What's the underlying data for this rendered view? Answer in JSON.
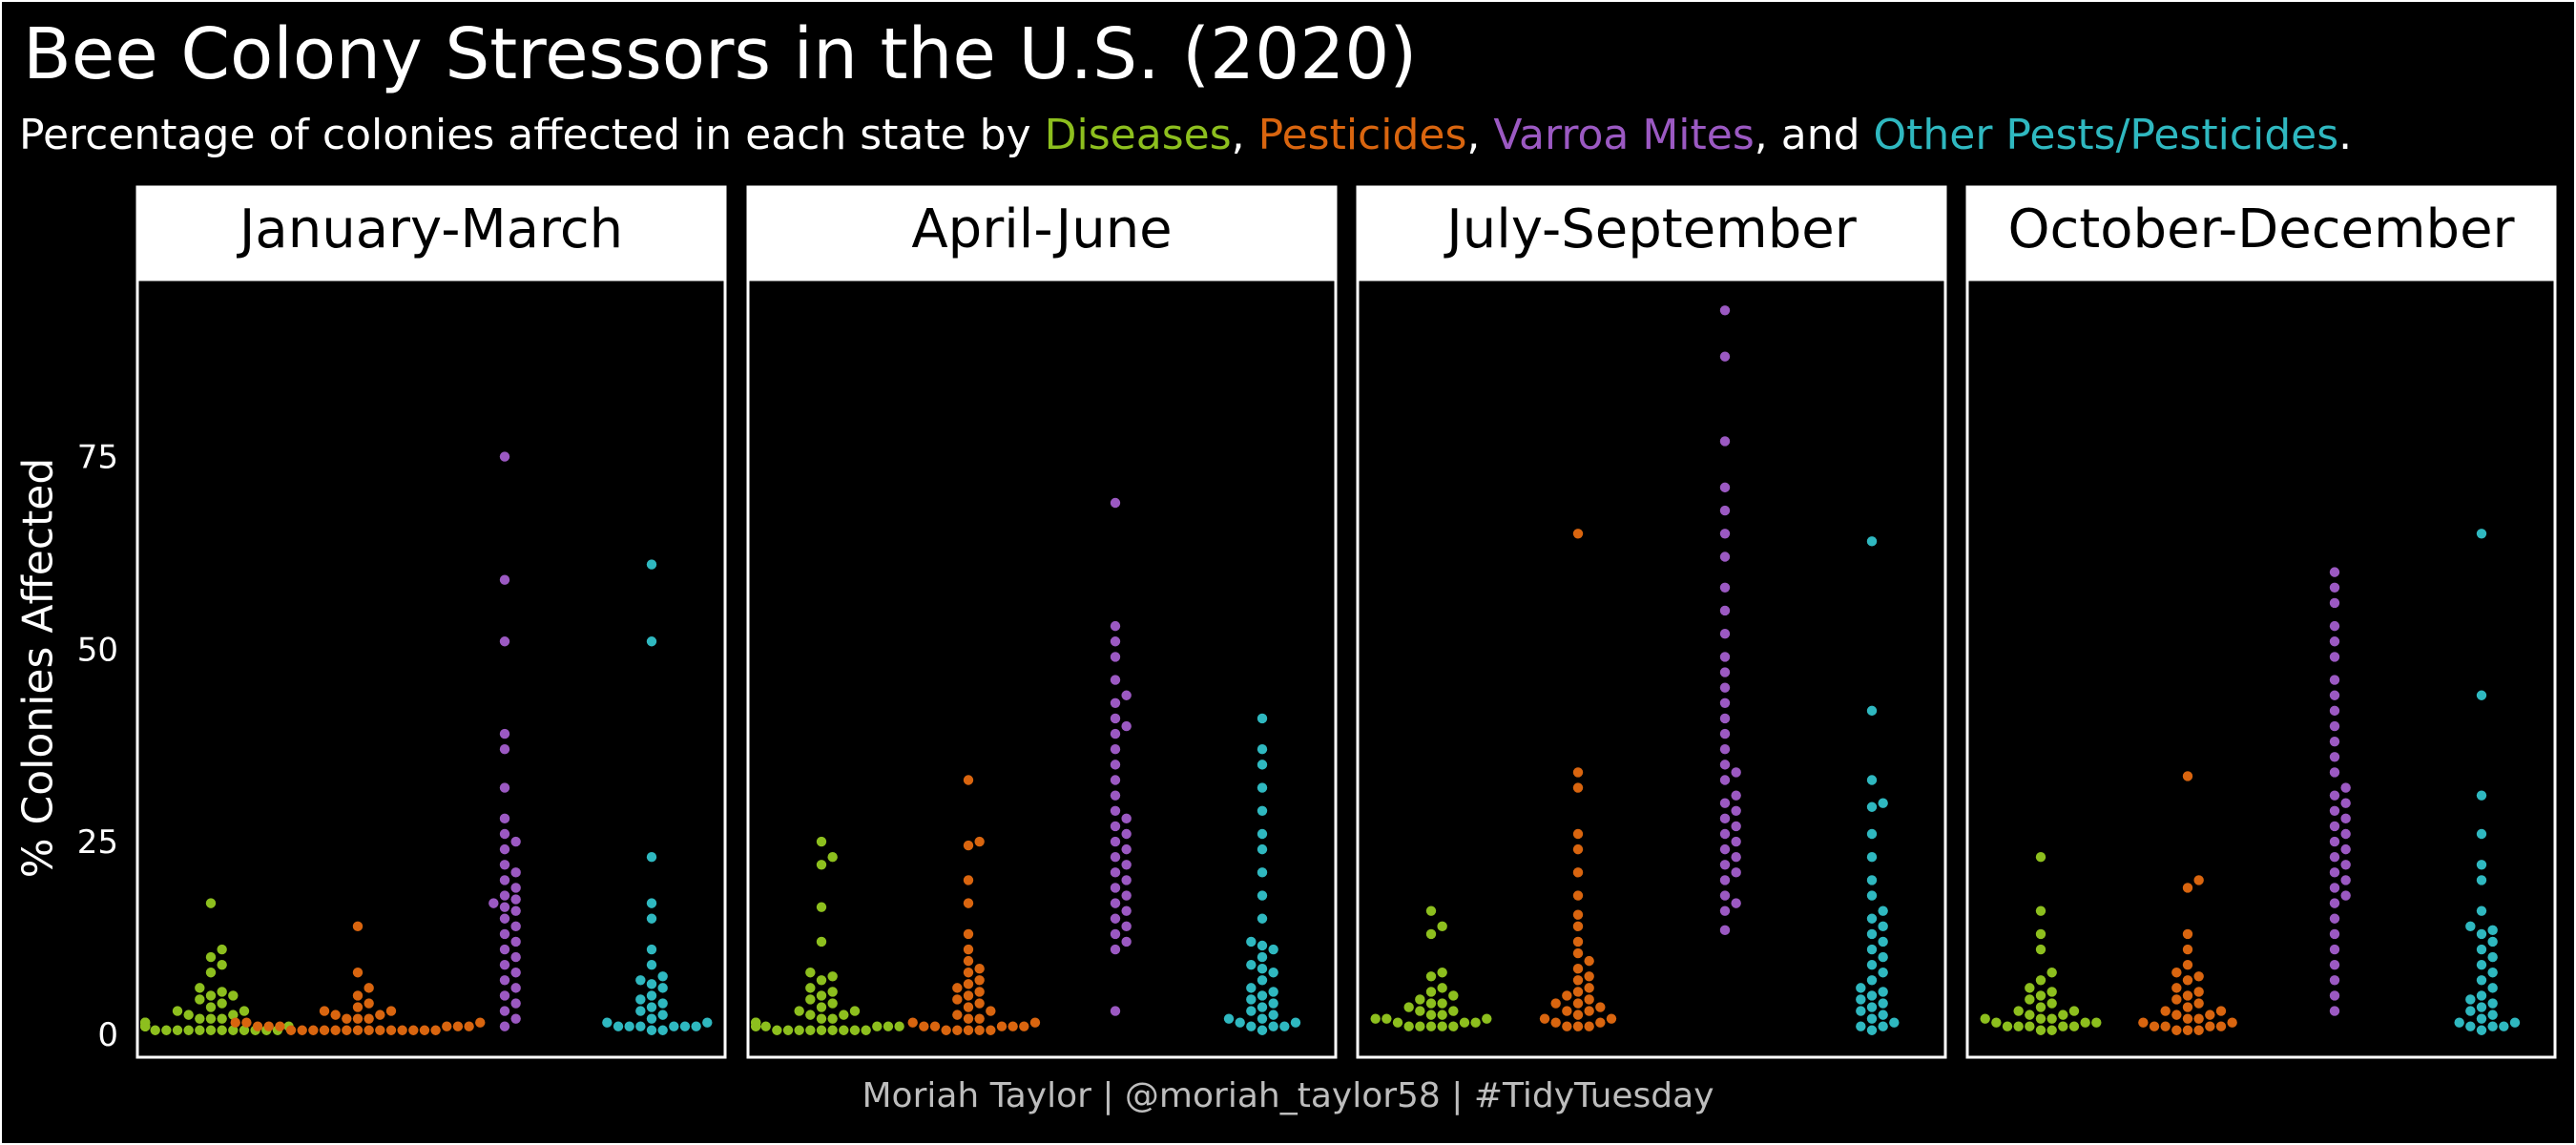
{
  "title": "Bee Colony Stressors in the U.S. (2020)",
  "subtitle": {
    "prefix": "Percentage of colonies affected in each state by ",
    "sep1": ", ",
    "sep2": ", ",
    "sep3": ", and ",
    "end": "."
  },
  "caption": "Moriah Taylor | @moriah_taylor58 | #TidyTuesday",
  "colors": {
    "background": "#000000",
    "Diseases": "#8dbf1e",
    "Pesticides": "#d9650f",
    "Varroa Mites": "#9b59c2",
    "Other Pests/Pesticides": "#2fb8c0"
  },
  "chart_data": {
    "type": "scatter",
    "subtype": "beeswarm",
    "ylabel": "% Colonies Affected",
    "ylim": [
      -3,
      98
    ],
    "yticks": [
      0,
      25,
      50,
      75
    ],
    "grid": false,
    "categories": [
      "Diseases",
      "Pesticides",
      "Varroa Mites",
      "Other Pests/Pesticides"
    ],
    "panels": [
      {
        "label": "January-March",
        "series": [
          {
            "name": "Diseases",
            "values": [
              17,
              11,
              10,
              9,
              8,
              6,
              5.5,
              5,
              5,
              4.5,
              4,
              3.5,
              3,
              3,
              2.5,
              2.5,
              2,
              2,
              2,
              1.5,
              1.5,
              1.5,
              1.5,
              1,
              1,
              1,
              1,
              1,
              1,
              1,
              1,
              1,
              0.5,
              0.5,
              0.5,
              0.5,
              0.5,
              0.5,
              0.5,
              0.5,
              0.5,
              0.5,
              0.5,
              0.5
            ]
          },
          {
            "name": "Pesticides",
            "values": [
              14,
              8,
              6,
              5,
              4,
              3.5,
              3,
              3,
              2.5,
              2.5,
              2,
              2,
              2,
              1.5,
              1.5,
              1.5,
              1,
              1,
              1,
              1,
              1,
              1,
              0.5,
              0.5,
              0.5,
              0.5,
              0.5,
              0.5,
              0.5,
              0.5,
              0.5,
              0.5,
              0.5,
              0.5,
              0.5,
              0.5
            ]
          },
          {
            "name": "Varroa Mites",
            "values": [
              75,
              59,
              51,
              39,
              37,
              32,
              28,
              26,
              25,
              24,
              22,
              21,
              20,
              19,
              18,
              17.5,
              17,
              16.5,
              16,
              15,
              14,
              13,
              12,
              11,
              10,
              9,
              8,
              7,
              6,
              5,
              4,
              3,
              2,
              1
            ]
          },
          {
            "name": "Other Pests/Pesticides",
            "values": [
              61,
              51,
              23,
              17,
              15,
              11,
              9,
              7.5,
              7,
              6.5,
              6,
              5,
              4.5,
              4,
              3.5,
              3,
              2.5,
              2,
              1.5,
              1.5,
              1,
              1,
              1,
              1,
              1,
              1,
              0.5,
              0.5
            ]
          }
        ]
      },
      {
        "label": "April-June",
        "series": [
          {
            "name": "Diseases",
            "values": [
              25,
              23,
              22,
              16.5,
              12,
              8,
              7.5,
              7,
              6,
              5.5,
              5,
              4.5,
              4,
              3.5,
              3,
              3,
              2.5,
              2.5,
              2,
              2,
              1.5,
              1.5,
              1.5,
              1,
              1,
              1,
              1,
              1,
              1,
              0.5,
              0.5,
              0.5,
              0.5,
              0.5,
              0.5,
              0.5,
              0.5,
              0.5
            ]
          },
          {
            "name": "Pesticides",
            "values": [
              33,
              25,
              24.5,
              20,
              17,
              13,
              11,
              9.5,
              8.5,
              8,
              7,
              6.5,
              6,
              5.5,
              5,
              4.5,
              4,
              3.5,
              3,
              2.5,
              2,
              2,
              1.5,
              1.5,
              1,
              1,
              1,
              1,
              1,
              0.5,
              0.5,
              0.5,
              0.5,
              0.5
            ]
          },
          {
            "name": "Varroa Mites",
            "values": [
              69,
              53,
              51,
              49,
              46,
              44,
              43,
              41,
              40,
              39,
              37,
              35,
              33,
              31,
              29,
              28,
              27,
              26,
              25,
              24,
              23,
              22,
              21,
              20,
              19,
              18,
              17,
              16,
              15,
              14,
              13,
              12,
              11,
              3
            ]
          },
          {
            "name": "Other Pests/Pesticides",
            "values": [
              41,
              37,
              35,
              32,
              29,
              26,
              24,
              21,
              18,
              15,
              12,
              11.5,
              11,
              10,
              9,
              8.5,
              8,
              7,
              6,
              5.5,
              5,
              4.5,
              4,
              3.5,
              3,
              2.5,
              2,
              2,
              1.5,
              1.5,
              1,
              1,
              1,
              0.5
            ]
          }
        ]
      },
      {
        "label": "July-September",
        "series": [
          {
            "name": "Diseases",
            "values": [
              16,
              14,
              13,
              8,
              7.5,
              6,
              5.5,
              5,
              4.5,
              4,
              4,
              3.5,
              3,
              3,
              2.5,
              2.5,
              2,
              2,
              2,
              1.5,
              1.5,
              1.5,
              1,
              1,
              1,
              1,
              1
            ]
          },
          {
            "name": "Pesticides",
            "values": [
              65,
              34,
              32,
              26,
              24,
              21,
              18,
              15.5,
              14,
              12,
              10.5,
              9.5,
              8.5,
              7.5,
              7,
              6,
              5.5,
              5,
              4.5,
              4,
              4,
              3.5,
              3,
              3,
              2.5,
              2,
              2,
              1.5,
              1.5,
              1,
              1,
              1
            ]
          },
          {
            "name": "Varroa Mites",
            "values": [
              94,
              88,
              77,
              71,
              68,
              65,
              62,
              58,
              55,
              52,
              49,
              47,
              45,
              43,
              41,
              39,
              37,
              35,
              34,
              33,
              31,
              30,
              29,
              28,
              27,
              26,
              25,
              24,
              23,
              22,
              21,
              20,
              18,
              17,
              16,
              13.5
            ]
          },
          {
            "name": "Other Pests/Pesticides",
            "values": [
              64,
              42,
              33,
              30,
              29.5,
              26,
              23,
              20,
              18,
              16,
              15,
              14,
              13,
              12,
              11,
              10,
              9,
              8,
              7,
              6,
              5.5,
              5,
              4.5,
              4,
              3.5,
              3,
              2.5,
              2,
              1.5,
              1,
              1,
              0.5
            ]
          }
        ]
      },
      {
        "label": "October-December",
        "series": [
          {
            "name": "Diseases",
            "values": [
              23,
              16,
              13,
              11,
              8,
              7,
              6,
              5.5,
              5,
              4.5,
              4,
              3.5,
              3,
              3,
              2.5,
              2.5,
              2,
              2,
              2,
              1.5,
              1.5,
              1.5,
              1,
              1,
              1,
              1,
              1,
              0.5,
              0.5
            ]
          },
          {
            "name": "Pesticides",
            "values": [
              33.5,
              20,
              19,
              13,
              11,
              9,
              8,
              7.5,
              7,
              6,
              5.5,
              5,
              4.5,
              4,
              3.5,
              3,
              3,
              2.5,
              2.5,
              2,
              2,
              1.5,
              1.5,
              1,
              1,
              1,
              1,
              0.5,
              0.5,
              0.5
            ]
          },
          {
            "name": "Varroa Mites",
            "values": [
              60,
              58,
              56,
              53,
              51,
              49,
              46,
              44,
              42,
              40,
              38,
              36,
              34,
              32,
              31,
              30,
              29,
              28,
              27,
              26,
              25,
              24,
              23,
              22,
              21,
              20,
              19,
              18,
              17,
              15,
              13,
              11,
              9,
              7,
              5,
              3
            ]
          },
          {
            "name": "Other Pests/Pesticides",
            "values": [
              65,
              44,
              31,
              26,
              22,
              20,
              16,
              14,
              13.5,
              13,
              12,
              11,
              10,
              9,
              8,
              7,
              6,
              5,
              4.5,
              4,
              3.5,
              3,
              2.5,
              2,
              1.5,
              1.5,
              1,
              1,
              1,
              0.5
            ]
          }
        ]
      }
    ]
  }
}
